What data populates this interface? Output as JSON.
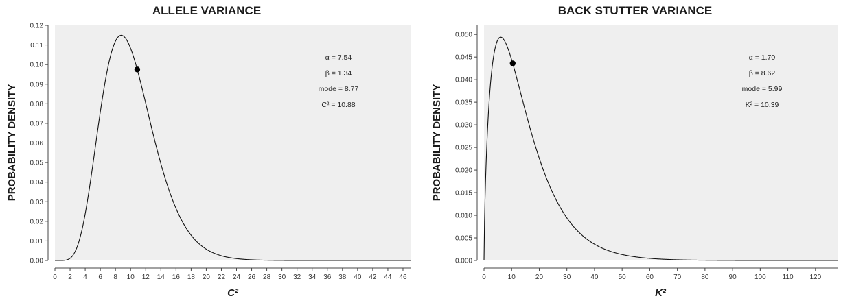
{
  "chart_data": [
    {
      "type": "line",
      "title": "ALLELE VARIANCE",
      "xlabel": "C²",
      "ylabel": "PROBABILITY DENSITY",
      "xlim": [
        0,
        47
      ],
      "ylim": [
        0,
        0.12
      ],
      "xticks": [
        0,
        2,
        4,
        6,
        8,
        10,
        12,
        14,
        16,
        18,
        20,
        22,
        24,
        26,
        28,
        30,
        32,
        34,
        36,
        38,
        40,
        42,
        44,
        46
      ],
      "yticks": [
        0.0,
        0.01,
        0.02,
        0.03,
        0.04,
        0.05,
        0.06,
        0.07,
        0.08,
        0.09,
        0.1,
        0.11,
        0.12
      ],
      "ytick_decimals": 2,
      "grid": false,
      "distribution": "gamma",
      "alpha": 7.54,
      "beta": 1.34,
      "marker": {
        "x": 10.88,
        "y": 0.0975
      },
      "annotations": [
        "α = 7.54",
        "β = 1.34",
        "mode = 8.77",
        "C² = 10.88"
      ]
    },
    {
      "type": "line",
      "title": "BACK STUTTER VARIANCE",
      "xlabel": "K²",
      "ylabel": "PROBABILITY DENSITY",
      "xlim": [
        0,
        128
      ],
      "ylim": [
        0,
        0.052
      ],
      "xticks": [
        0,
        10,
        20,
        30,
        40,
        50,
        60,
        70,
        80,
        90,
        100,
        110,
        120
      ],
      "yticks": [
        0.0,
        0.005,
        0.01,
        0.015,
        0.02,
        0.025,
        0.03,
        0.035,
        0.04,
        0.045,
        0.05
      ],
      "ytick_decimals": 3,
      "grid": false,
      "distribution": "gamma",
      "alpha": 1.7,
      "beta": 8.62,
      "marker": {
        "x": 10.39,
        "y": 0.0436
      },
      "annotations": [
        "α = 1.70",
        "β = 8.62",
        "mode = 5.99",
        "K² = 10.39"
      ]
    }
  ]
}
